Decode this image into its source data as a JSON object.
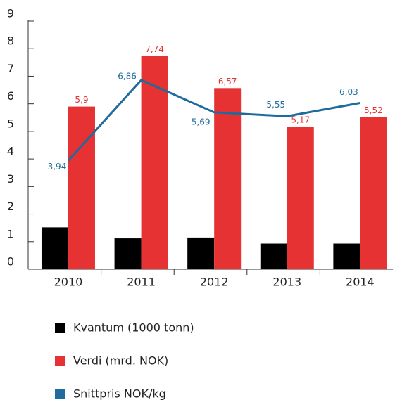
{
  "chart_data": {
    "type": "bar",
    "categories": [
      "2010",
      "2011",
      "2012",
      "2013",
      "2014"
    ],
    "series": [
      {
        "name": "Kvantum (1000 tonn)",
        "color": "#000000",
        "values": [
          1.52,
          1.12,
          1.15,
          0.93,
          0.93
        ]
      },
      {
        "name": "Verdi (mrd. NOK)",
        "color": "#e63232",
        "values": [
          5.9,
          7.74,
          6.57,
          5.17,
          5.52
        ],
        "value_labels": [
          "5,9",
          "7,74",
          "6,57",
          "5,17",
          "5,52"
        ]
      },
      {
        "name": "Snittpris NOK/kg",
        "color": "#1f6b9b",
        "type": "line",
        "values": [
          3.94,
          6.86,
          5.69,
          5.55,
          6.03
        ],
        "value_labels": [
          "3,94",
          "6,86",
          "5,69",
          "5,55",
          "6,03"
        ]
      }
    ],
    "ylim": [
      0,
      9
    ],
    "yticks": [
      0,
      1,
      2,
      3,
      4,
      5,
      6,
      7,
      8,
      9
    ]
  }
}
